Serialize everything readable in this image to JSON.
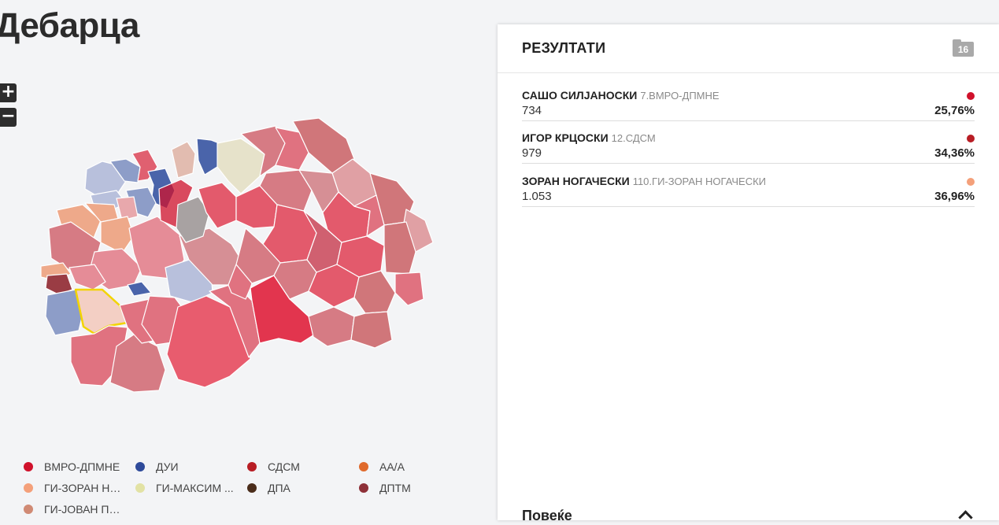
{
  "page": {
    "title": "Дебарца"
  },
  "zoom": {
    "in_label": "+",
    "out_label": "−"
  },
  "legend": [
    {
      "label": "ВМРО-ДПМНЕ",
      "color": "#d0112b"
    },
    {
      "label": "ДУИ",
      "color": "#2e4a9a"
    },
    {
      "label": "СДСМ",
      "color": "#b81d24"
    },
    {
      "label": "АА/А",
      "color": "#e06a2c"
    },
    {
      "label": "ГИ-ЗОРАН НО...",
      "color": "#f4a07a"
    },
    {
      "label": "ГИ-МАКСИМ ...",
      "color": "#e2e2a4"
    },
    {
      "label": "ДПА",
      "color": "#4a2c1a"
    },
    {
      "label": "ДПТМ",
      "color": "#8e3038"
    },
    {
      "label": "ГИ-ЈОВАН ПЕ...",
      "color": "#d08a74"
    }
  ],
  "results": {
    "title": "РЕЗУЛТАТИ",
    "badge": "16",
    "candidates": [
      {
        "name": "САШО СИЛЈАНОСКИ",
        "party": "7.ВМРО-ДПМНЕ",
        "votes": "734",
        "percent": "25,76%",
        "color": "#d0112b"
      },
      {
        "name": "ИГОР КРЦОСКИ",
        "party": "12.СДСМ",
        "votes": "979",
        "percent": "34,36%",
        "color": "#b81d24"
      },
      {
        "name": "ЗОРАН НОГАЧЕСКИ",
        "party": "110.ГИ-ЗОРАН НОГАЧЕСКИ",
        "votes": "1.053",
        "percent": "36,96%",
        "color": "#f4a07a"
      }
    ],
    "more_label": "Повеќе"
  },
  "map": {
    "selected_municipality": "Дебарца",
    "highlight_color": "#f2d400"
  }
}
